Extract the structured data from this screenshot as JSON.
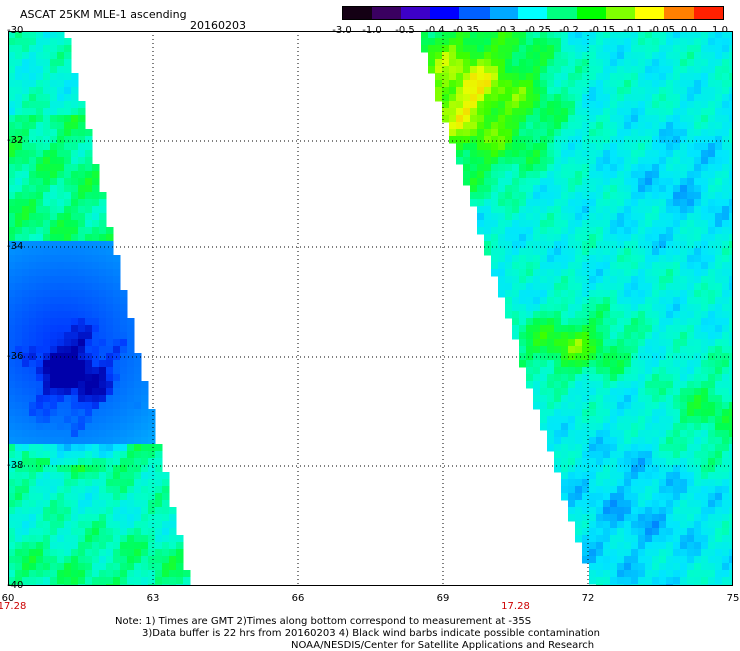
{
  "header": {
    "title": "ASCAT 25KM MLE-1 ascending",
    "date": "20160203"
  },
  "colorbar": {
    "labels": [
      "-3.0",
      "-1.0",
      "-0.5",
      "-0.4",
      "-0.35",
      "-0.3",
      "-0.25",
      "-0.2",
      "-0.15",
      "-0.1",
      "-0.05",
      "0.0",
      "1.0"
    ],
    "colors": [
      "#140014",
      "#3a0060",
      "#3d00c8",
      "#0000ff",
      "#0060ff",
      "#00a8ff",
      "#00ffff",
      "#00ff80",
      "#00ff00",
      "#80ff00",
      "#ffff00",
      "#ff8000",
      "#ff2000"
    ]
  },
  "map": {
    "lat_labels": [
      "-30",
      "-32",
      "-34",
      "-36",
      "-38",
      "-40"
    ],
    "lon_labels": [
      "60",
      "63",
      "66",
      "69",
      "72",
      "75"
    ],
    "lat_range": [
      -40,
      -30
    ],
    "lon_range": [
      60,
      75
    ],
    "time_labels": [
      {
        "text": "17.28",
        "lon": 60
      },
      {
        "text": "17.28",
        "lon": 70.5
      }
    ]
  },
  "notes": {
    "line1": "Note: 1) Times are GMT 2)Times along bottom correspond to measurement at -35S",
    "line2": "3)Data buffer is 22 hrs from 20160203 4) Black wind barbs indicate possible contamination",
    "line3": "NOAA/NESDIS/Center for Satellite Applications and Research"
  }
}
